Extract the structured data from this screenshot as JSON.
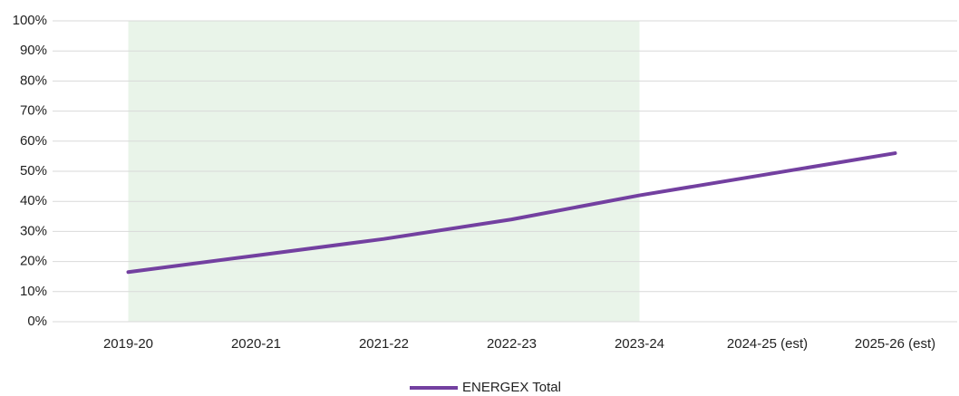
{
  "chart_data": {
    "type": "line",
    "categories": [
      "2019-20",
      "2020-21",
      "2021-22",
      "2022-23",
      "2023-24",
      "2024-25 (est)",
      "2025-26 (est)"
    ],
    "series": [
      {
        "name": "ENERGEX Total",
        "color": "#7340a0",
        "values": [
          16.5,
          22,
          27.5,
          34,
          42,
          49,
          56
        ]
      }
    ],
    "ylim": [
      0,
      100
    ],
    "yticks": [
      {
        "value": 0,
        "label": "0%"
      },
      {
        "value": 10,
        "label": "10%"
      },
      {
        "value": 20,
        "label": "20%"
      },
      {
        "value": 30,
        "label": "30%"
      },
      {
        "value": 40,
        "label": "40%"
      },
      {
        "value": 50,
        "label": "50%"
      },
      {
        "value": 60,
        "label": "60%"
      },
      {
        "value": 70,
        "label": "70%"
      },
      {
        "value": 80,
        "label": "80%"
      },
      {
        "value": 90,
        "label": "90%"
      },
      {
        "value": 100,
        "label": "100%"
      }
    ],
    "grid": true,
    "shaded_categories": [
      0,
      4
    ],
    "shade_color": "#e9f4e9",
    "legend": "bottom"
  }
}
